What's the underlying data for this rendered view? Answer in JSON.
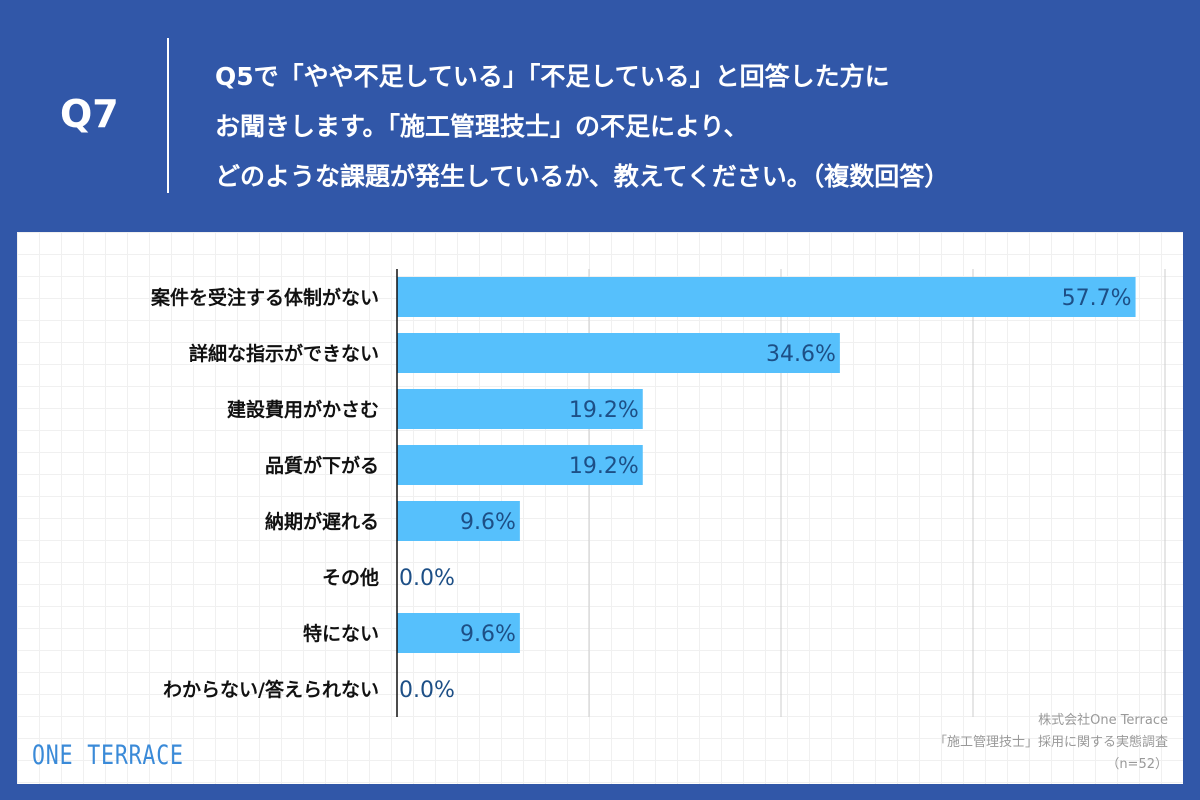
{
  "header": {
    "qno": "Q7",
    "question": "Q5で「やや不足している」「不足している」と回答した方に\nお聞きします。「施工管理技士」の不足により、\nどのような課題が発生しているか、教えてください。（複数回答）"
  },
  "chart_data": {
    "type": "bar",
    "orientation": "horizontal",
    "categories": [
      "案件を受注する体制がない",
      "詳細な指示ができない",
      "建設費用がかさむ",
      "品質が下がる",
      "納期が遅れる",
      "その他",
      "特にない",
      "わからない/答えられない"
    ],
    "values": [
      57.7,
      34.6,
      19.2,
      19.2,
      9.6,
      0.0,
      9.6,
      0.0
    ],
    "labels": [
      "57.7%",
      "34.6%",
      "19.2%",
      "19.2%",
      "9.6%",
      "0.0%",
      "9.6%",
      "0.0%"
    ],
    "xlim": [
      0,
      60
    ],
    "grid": true,
    "bar_color": "#56c0fc",
    "label_color": "#1d4f86"
  },
  "footer": {
    "logo": "ONE TERRACE",
    "source_lines": [
      "株式会社One Terrace",
      "「施工管理技士」採用に関する実態調査",
      "（n=52）"
    ]
  },
  "colors": {
    "background": "#3157a8"
  }
}
